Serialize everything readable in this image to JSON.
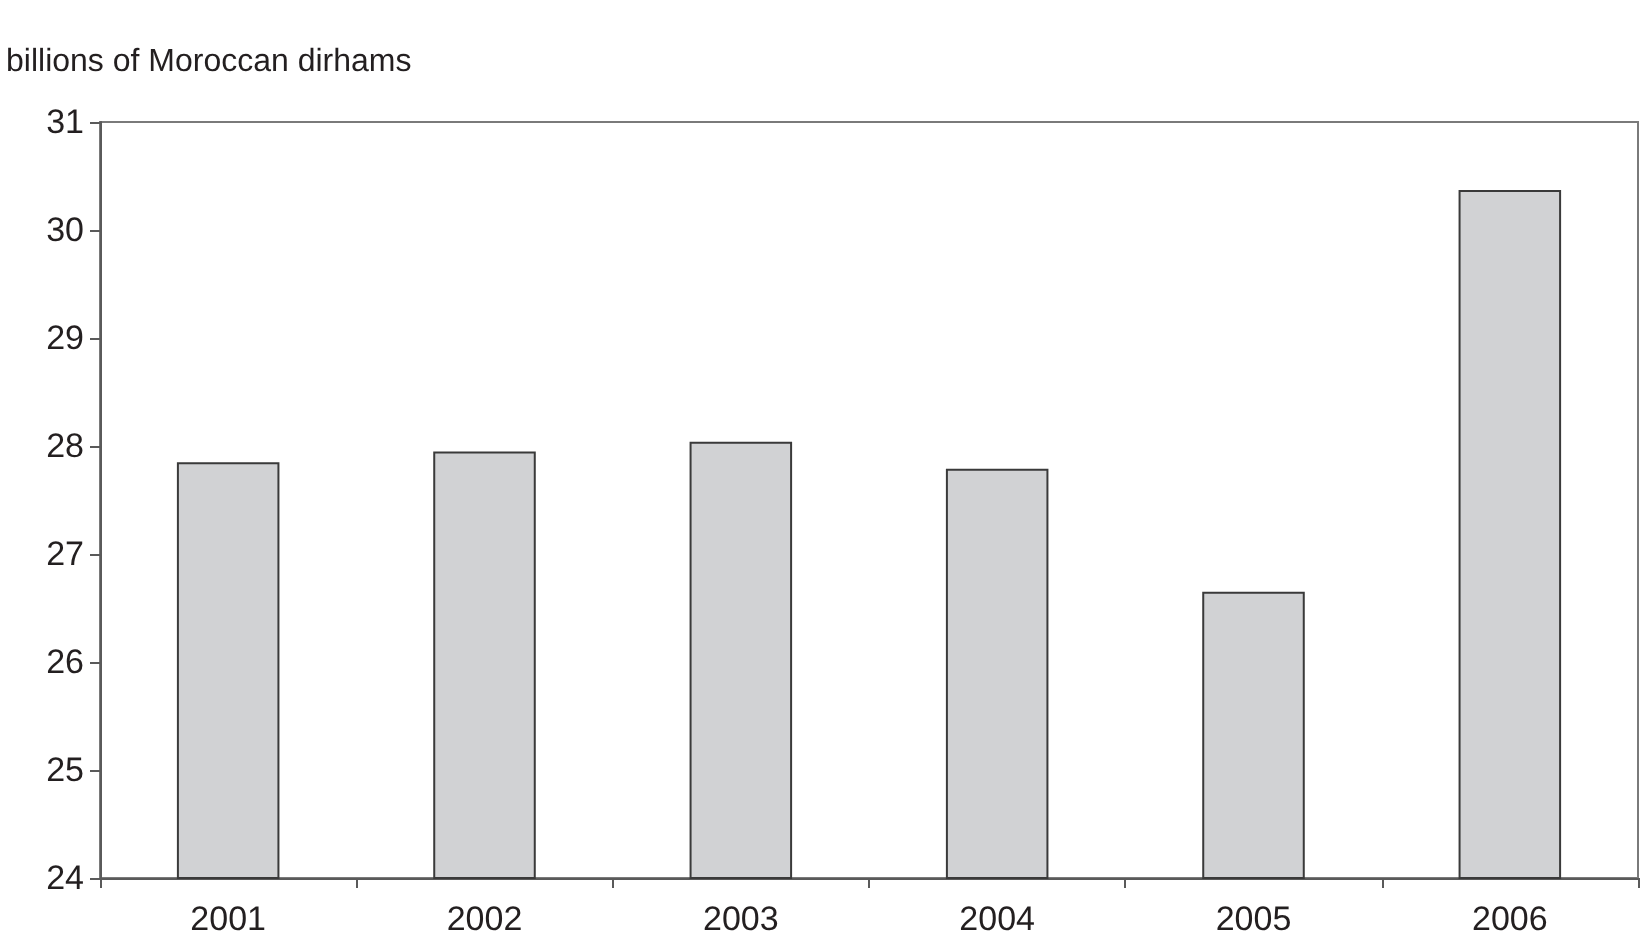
{
  "chart_data": {
    "type": "bar",
    "ylabel": "billions of Moroccan dirhams",
    "categories": [
      "2001",
      "2002",
      "2003",
      "2004",
      "2005",
      "2006"
    ],
    "values": [
      27.85,
      27.95,
      28.04,
      27.79,
      26.65,
      30.37
    ],
    "color": "#d1d2d4",
    "ylim": [
      24,
      31
    ],
    "yticks": [
      24,
      25,
      26,
      27,
      28,
      29,
      30,
      31
    ],
    "grid": false
  }
}
